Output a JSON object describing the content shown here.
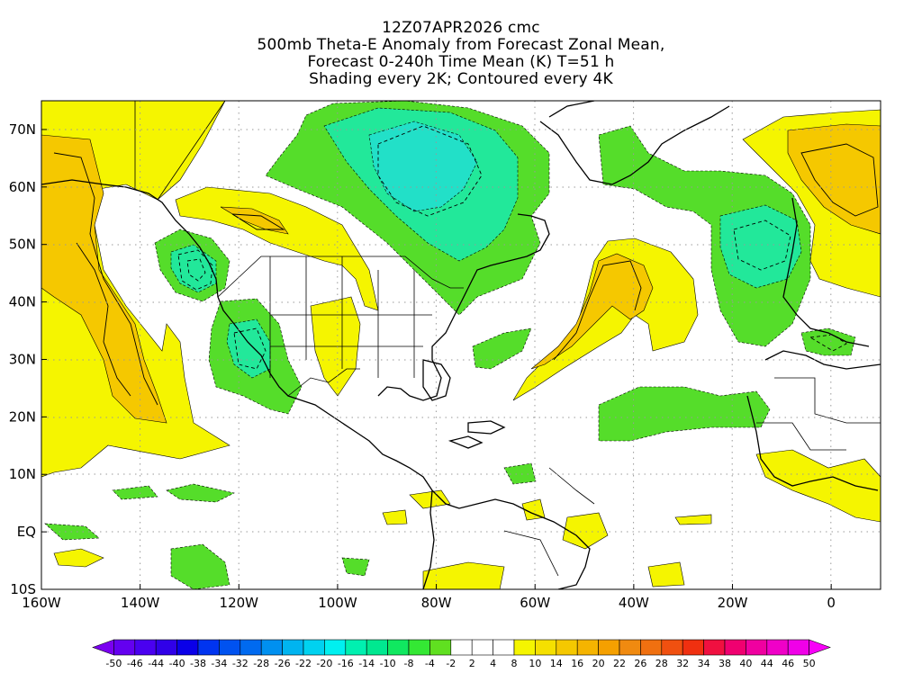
{
  "title": {
    "lines": [
      "12Z07APR2026 cmc",
      "500mb Theta-E Anomaly from Forecast Zonal Mean,",
      "Forecast 0-240h Time Mean (K) T=51 h",
      "Shading every 2K; Contoured every 4K"
    ]
  },
  "map": {
    "lat_labels": [
      "70N",
      "60N",
      "50N",
      "40N",
      "30N",
      "20N",
      "10N",
      "EQ",
      "10S"
    ],
    "lat_values": [
      70,
      60,
      50,
      40,
      30,
      20,
      10,
      0,
      -10
    ],
    "lon_labels": [
      "160W",
      "140W",
      "120W",
      "100W",
      "80W",
      "60W",
      "40W",
      "20W",
      "0"
    ],
    "lon_values": [
      -160,
      -140,
      -120,
      -100,
      -80,
      -60,
      -40,
      -20,
      0
    ],
    "lon_range": [
      -160,
      10
    ],
    "lat_range": [
      -10,
      75
    ],
    "colors": {
      "green": "#55dd2a",
      "mint": "#22e89a",
      "aqua": "#22e0c8",
      "yellow": "#f5f500",
      "orange": "#f5c800",
      "deep_orange": "#f09a30",
      "land_line": "#000000",
      "grid": "#999999"
    }
  },
  "colorbar": {
    "labels": [
      "-50",
      "-46",
      "-44",
      "-40",
      "-38",
      "-34",
      "-32",
      "-28",
      "-26",
      "-22",
      "-20",
      "-16",
      "-14",
      "-10",
      "-8",
      "-4",
      "-2",
      "2",
      "4",
      "8",
      "10",
      "14",
      "16",
      "20",
      "22",
      "26",
      "28",
      "32",
      "34",
      "38",
      "40",
      "44",
      "46",
      "50"
    ],
    "colors": [
      "#7a00f0",
      "#6400f0",
      "#4a00f0",
      "#3000e8",
      "#0a00e8",
      "#0034f0",
      "#0052f0",
      "#006af0",
      "#0090f0",
      "#00b4f0",
      "#00d2f0",
      "#00f0f0",
      "#00f0b0",
      "#00e890",
      "#10e860",
      "#34e834",
      "#60e020",
      "#ffffff",
      "#ffffff",
      "#ffffff",
      "#f5f500",
      "#f5e000",
      "#f5c800",
      "#f5b400",
      "#f5a000",
      "#f08a10",
      "#f07010",
      "#f05010",
      "#f03010",
      "#f01040",
      "#f00070",
      "#f000a0",
      "#f000c8",
      "#f000e8",
      "#f800f8"
    ]
  }
}
